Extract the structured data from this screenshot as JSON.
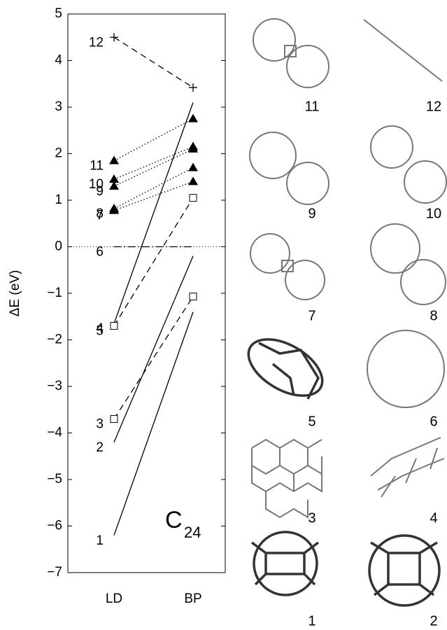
{
  "chart_data": {
    "type": "line",
    "ylabel": "ΔE (eV)",
    "categories": [
      "LD",
      "BP"
    ],
    "ylim": [
      -7,
      5
    ],
    "yticks": [
      {
        "value": -7,
        "label": "−7"
      },
      {
        "value": -6,
        "label": "−6"
      },
      {
        "value": -5,
        "label": "−5"
      },
      {
        "value": -4,
        "label": "−4"
      },
      {
        "value": -3,
        "label": "−3"
      },
      {
        "value": -2,
        "label": "−2"
      },
      {
        "value": -1,
        "label": "−1"
      },
      0,
      1,
      2,
      3,
      4,
      5
    ],
    "reference_line": 0,
    "annotation": {
      "text": "C",
      "subscript": "24"
    },
    "series": [
      {
        "name": "1",
        "color": "#000000",
        "linestyle": "solid",
        "marker": "none",
        "values": [
          -6.2,
          -1.4
        ]
      },
      {
        "name": "2",
        "color": "#000000",
        "linestyle": "solid",
        "marker": "none",
        "values": [
          -4.2,
          -0.2
        ]
      },
      {
        "name": "3",
        "color": "#000000",
        "linestyle": "dashed",
        "marker": "square",
        "values": [
          -3.7,
          -1.07
        ]
      },
      {
        "name": "4",
        "color": "#000000",
        "linestyle": "solid",
        "marker": "none",
        "values": [
          -1.65,
          3.1
        ]
      },
      {
        "name": "5",
        "color": "#000000",
        "linestyle": "dashed",
        "marker": "square",
        "values": [
          -1.7,
          1.05
        ]
      },
      {
        "name": "6",
        "color": "#000000",
        "linestyle": "dashdot",
        "marker": "none",
        "values": [
          0,
          0
        ]
      },
      {
        "name": "7",
        "color": "#000000",
        "linestyle": "dotted",
        "marker": "triangle",
        "values": [
          0.78,
          1.4
        ]
      },
      {
        "name": "8",
        "color": "#000000",
        "linestyle": "dotted",
        "marker": "triangle",
        "values": [
          0.82,
          1.7
        ]
      },
      {
        "name": "9",
        "color": "#000000",
        "linestyle": "dotted",
        "marker": "triangle",
        "values": [
          1.3,
          2.1
        ]
      },
      {
        "name": "10",
        "color": "#000000",
        "linestyle": "dotted",
        "marker": "triangle",
        "values": [
          1.45,
          2.15
        ]
      },
      {
        "name": "11",
        "color": "#000000",
        "linestyle": "dotted",
        "marker": "triangle",
        "values": [
          1.85,
          2.75
        ]
      },
      {
        "name": "12",
        "color": "#000000",
        "linestyle": "dashed",
        "marker": "plus",
        "values": [
          4.5,
          3.42
        ]
      }
    ]
  },
  "structures": [
    "11",
    "12",
    "9",
    "10",
    "7",
    "8",
    "5",
    "6",
    "3",
    "4",
    "1",
    "2"
  ]
}
